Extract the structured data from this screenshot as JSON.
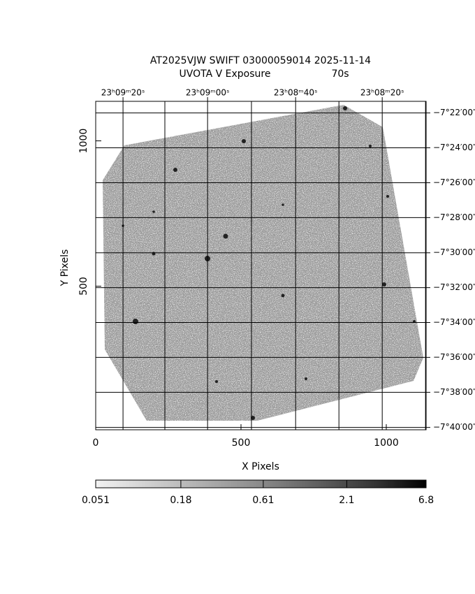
{
  "chart_data": {
    "type": "image",
    "title": "AT2025VJW SWIFT 03000059014 2025-11-14",
    "subtitle": "UVOTA V Exposure",
    "exposure": "70s",
    "x_label": "X Pixels",
    "y_label": "Y Pixels",
    "xlim": [
      0,
      1137
    ],
    "ylim": [
      6,
      1136
    ],
    "xticks": [
      0,
      500,
      1000
    ],
    "yticks": [
      500,
      1000
    ],
    "ra_grid": [
      94,
      238,
      385,
      536,
      688,
      837,
      986,
      1135
    ],
    "ra_ticks": [
      {
        "value": 94,
        "label": "23ʰ09ᵐ20ˢ"
      },
      {
        "value": 385,
        "label": "23ʰ09ᵐ00ˢ"
      },
      {
        "value": 688,
        "label": "23ʰ08ᵐ40ˢ"
      },
      {
        "value": 986,
        "label": "23ʰ08ᵐ20ˢ"
      }
    ],
    "dec_ticks": [
      {
        "value": 1096,
        "label": "−7°22′00″"
      },
      {
        "value": 976,
        "label": "−7°24′00″"
      },
      {
        "value": 856,
        "label": "−7°26′00″"
      },
      {
        "value": 736,
        "label": "−7°28′00″"
      },
      {
        "value": 615,
        "label": "−7°30′00″"
      },
      {
        "value": 495,
        "label": "−7°32′00″"
      },
      {
        "value": 375,
        "label": "−7°34′00″"
      },
      {
        "value": 255,
        "label": "−7°36′00″"
      },
      {
        "value": 135,
        "label": "−7°38′00″"
      },
      {
        "value": 14,
        "label": "−7°40′00″"
      }
    ],
    "colorbar": {
      "log": true,
      "clim": [
        0.051,
        6.8
      ],
      "ticks": [
        0.051,
        0.18,
        0.61,
        2.1,
        6.8
      ]
    }
  }
}
